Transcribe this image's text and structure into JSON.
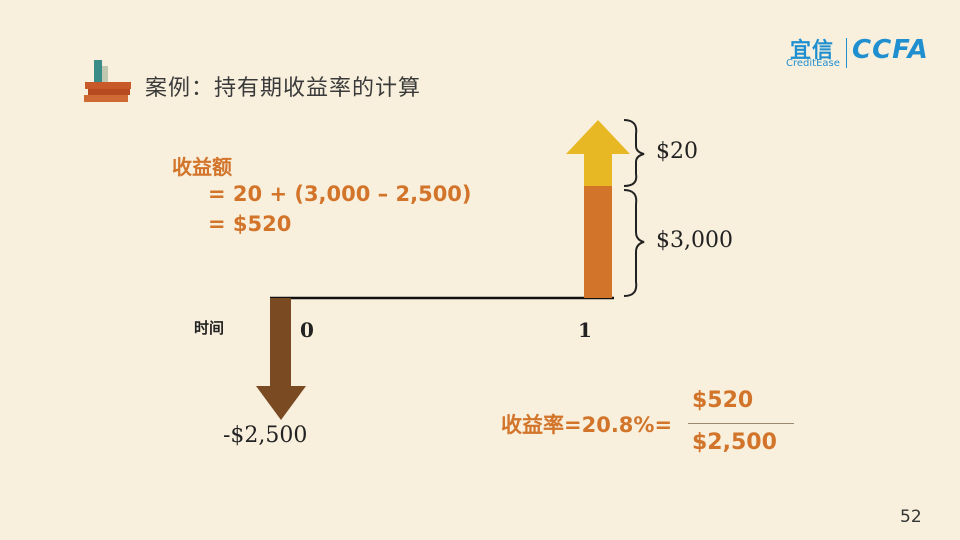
{
  "header": {
    "title": "案例：持有期收益率的计算",
    "logo_cn": "宜信",
    "logo_en": "CreditEase",
    "logo_ccfa": "CCFA"
  },
  "formula": {
    "label": "收益额",
    "line1": "= 20 + (3,000 – 2,500)",
    "line2": "= $520"
  },
  "diagram": {
    "time_label": "时间",
    "tick_0": "0",
    "tick_1": "1",
    "outflow_label": "-$2,500",
    "inflow_top_label": "$20",
    "inflow_bottom_label": "$3,000",
    "colors": {
      "outflow_arrow": "#7a4a22",
      "inflow_bar": "#d2742a",
      "inflow_arrow": "#e8b824"
    }
  },
  "result": {
    "rate_label": "收益率=20.8%=",
    "numerator": "$520",
    "denominator": "$2,500"
  },
  "page_number": "52"
}
